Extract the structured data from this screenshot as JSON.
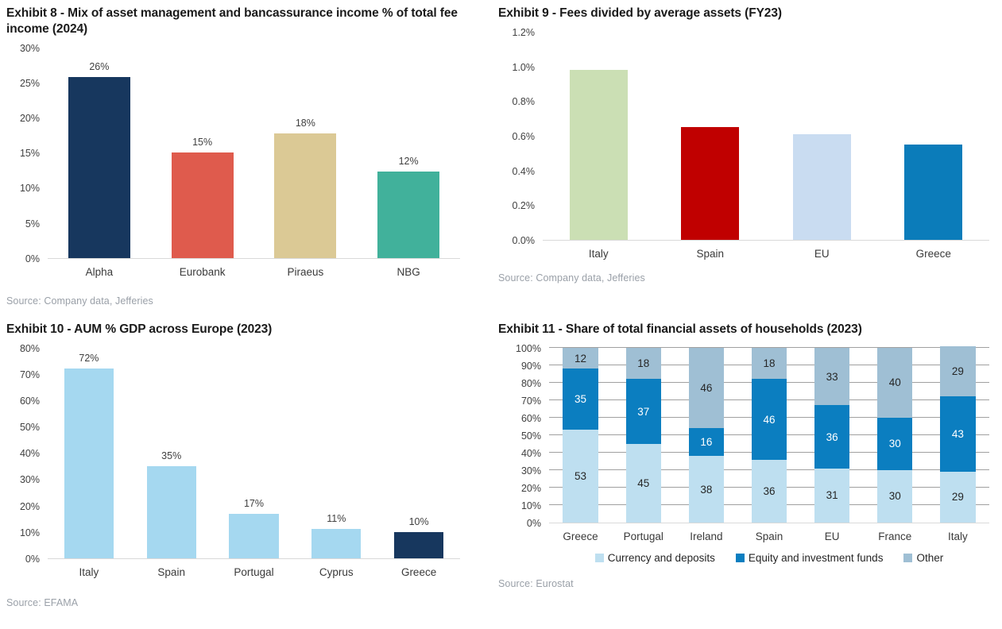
{
  "page": {
    "background": "#ffffff"
  },
  "colors": {
    "title_text": "#1a1a1a",
    "axis_text": "#404040",
    "source_text": "#9aa0a8",
    "baseline": "#d9d9d9",
    "gridline": "#a0a0a0"
  },
  "chart_data": [
    {
      "type": "bar",
      "title": "Exhibit 8 - Mix of asset management and bancassurance income % of total fee income (2024)",
      "source": "Source: Company data, Jefferies",
      "categories": [
        "Alpha",
        "Eurobank",
        "Piraeus",
        "NBG"
      ],
      "values": [
        25.8,
        15,
        17.7,
        12.3
      ],
      "data_labels": [
        "26%",
        "15%",
        "18%",
        "12%"
      ],
      "bar_colors": [
        "#17375e",
        "#df5b4d",
        "#dbc995",
        "#41b19b"
      ],
      "ylim": [
        0,
        30
      ],
      "ytick_values": [
        0,
        5,
        10,
        15,
        20,
        25,
        30
      ],
      "ytick_labels": [
        "0%",
        "5%",
        "10%",
        "15%",
        "20%",
        "25%",
        "30%"
      ],
      "grid": false,
      "legend": false
    },
    {
      "type": "bar",
      "title": "Exhibit 9 - Fees divided by average assets (FY23)",
      "source": "Source: Company data, Jefferies",
      "categories": [
        "Italy",
        "Spain",
        "EU",
        "Greece"
      ],
      "values": [
        0.98,
        0.65,
        0.61,
        0.55
      ],
      "bar_colors": [
        "#cbdfb4",
        "#c00000",
        "#c9dcf1",
        "#0b7cba"
      ],
      "ylim": [
        0,
        1.2
      ],
      "ytick_values": [
        0,
        0.2,
        0.4,
        0.6,
        0.8,
        1.0,
        1.2
      ],
      "ytick_labels": [
        "0.0%",
        "0.2%",
        "0.4%",
        "0.6%",
        "0.8%",
        "1.0%",
        "1.2%"
      ],
      "grid": false,
      "legend": false
    },
    {
      "type": "bar",
      "title": "Exhibit 10 - AUM % GDP across Europe (2023)",
      "source": "Source: EFAMA",
      "categories": [
        "Italy",
        "Spain",
        "Portugal",
        "Cyprus",
        "Greece"
      ],
      "values": [
        72,
        35,
        17,
        11,
        10
      ],
      "data_labels": [
        "72%",
        "35%",
        "17%",
        "11%",
        "10%"
      ],
      "bar_colors": [
        "#a5d8f0",
        "#a5d8f0",
        "#a5d8f0",
        "#a5d8f0",
        "#17375e"
      ],
      "ylim": [
        0,
        80
      ],
      "ytick_values": [
        0,
        10,
        20,
        30,
        40,
        50,
        60,
        70,
        80
      ],
      "ytick_labels": [
        "0%",
        "10%",
        "20%",
        "30%",
        "40%",
        "50%",
        "60%",
        "70%",
        "80%"
      ],
      "grid": false,
      "legend": false
    },
    {
      "type": "stacked_bar",
      "title": "Exhibit 11 - Share of total financial assets of households (2023)",
      "source": "Source: Eurostat",
      "categories": [
        "Greece",
        "Portugal",
        "Ireland",
        "Spain",
        "EU",
        "France",
        "Italy"
      ],
      "series": [
        {
          "name": "Currency and deposits",
          "color": "#bedff0",
          "label_color": "#262626",
          "values": [
            53,
            45,
            38,
            36,
            31,
            30,
            29
          ]
        },
        {
          "name": "Equity and investment funds",
          "color": "#0b7ec0",
          "label_color": "#ffffff",
          "values": [
            35,
            37,
            16,
            46,
            36,
            30,
            43
          ]
        },
        {
          "name": "Other",
          "color": "#9fbfd4",
          "label_color": "#262626",
          "values": [
            12,
            18,
            46,
            18,
            33,
            40,
            29
          ]
        }
      ],
      "ylim": [
        0,
        100
      ],
      "ytick_values": [
        0,
        10,
        20,
        30,
        40,
        50,
        60,
        70,
        80,
        90,
        100
      ],
      "ytick_labels": [
        "0%",
        "10%",
        "20%",
        "30%",
        "40%",
        "50%",
        "60%",
        "70%",
        "80%",
        "90%",
        "100%"
      ],
      "grid": true,
      "legend": true,
      "legend_position": "bottom"
    }
  ]
}
